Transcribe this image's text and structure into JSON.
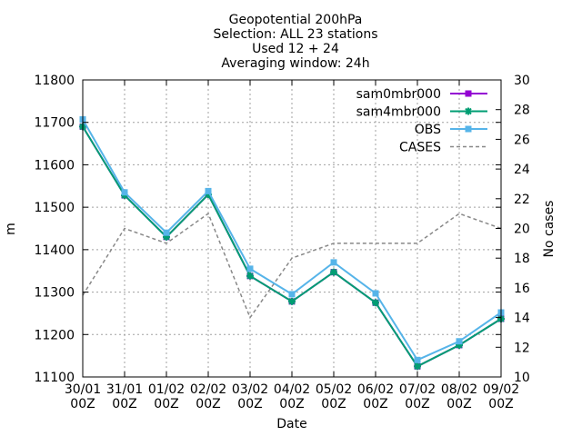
{
  "chart_data": {
    "type": "line",
    "title_lines": [
      "Geopotential 200hPa",
      "Selection: ALL      23 stations",
      "Used 12 + 24",
      "Averaging window: 24h"
    ],
    "xlabel": "Date",
    "ylabel": "m",
    "y2label": "No cases",
    "categories": [
      [
        "30/01",
        "00Z"
      ],
      [
        "31/01",
        "00Z"
      ],
      [
        "01/02",
        "00Z"
      ],
      [
        "02/02",
        "00Z"
      ],
      [
        "03/02",
        "00Z"
      ],
      [
        "04/02",
        "00Z"
      ],
      [
        "05/02",
        "00Z"
      ],
      [
        "06/02",
        "00Z"
      ],
      [
        "07/02",
        "00Z"
      ],
      [
        "08/02",
        "00Z"
      ],
      [
        "09/02",
        "00Z"
      ]
    ],
    "ylim": [
      11100,
      11800
    ],
    "yticks": [
      11100,
      11200,
      11300,
      11400,
      11500,
      11600,
      11700,
      11800
    ],
    "y2lim": [
      10,
      30
    ],
    "y2ticks": [
      10,
      12,
      14,
      16,
      18,
      20,
      22,
      24,
      26,
      28,
      30
    ],
    "grid": true,
    "legend_position": "top-right",
    "series": [
      {
        "name": "sam0mbr000",
        "axis": "y",
        "color": "#9400d3",
        "marker": "square",
        "values": [
          11690,
          11528,
          11430,
          11530,
          11338,
          11278,
          11347,
          11275,
          11125,
          11175,
          11237
        ]
      },
      {
        "name": "sam4mbr000",
        "axis": "y",
        "color": "#009e73",
        "marker": "star",
        "values": [
          11690,
          11528,
          11430,
          11530,
          11338,
          11278,
          11347,
          11275,
          11125,
          11175,
          11237
        ]
      },
      {
        "name": "OBS",
        "axis": "y",
        "color": "#56b4e9",
        "marker": "square",
        "values": [
          11707,
          11535,
          11440,
          11538,
          11355,
          11295,
          11370,
          11297,
          11140,
          11184,
          11252
        ]
      },
      {
        "name": "CASES",
        "axis": "y2",
        "color": "#888888",
        "dashed": true,
        "values": [
          15.5,
          20,
          19,
          21,
          14,
          18,
          19,
          19,
          19,
          21,
          20
        ]
      }
    ]
  }
}
